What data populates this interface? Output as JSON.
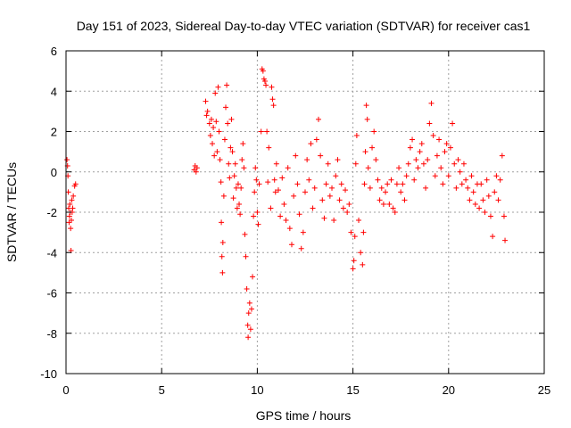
{
  "chart_data": {
    "type": "scatter",
    "title": "Day 151 of 2023, Sidereal Day-to-day VTEC variation (SDTVAR) for receiver cas1",
    "xlabel": "GPS time / hours",
    "ylabel": "SDTVAR / TECUs",
    "xlim": [
      0,
      25
    ],
    "ylim": [
      -10,
      6
    ],
    "xticks": [
      0,
      5,
      10,
      15,
      20,
      25
    ],
    "yticks": [
      -10,
      -8,
      -6,
      -4,
      -2,
      0,
      2,
      4,
      6
    ],
    "xtick_labels": [
      "0",
      "5",
      "10",
      "15",
      "20",
      "25"
    ],
    "ytick_labels": [
      "-10",
      "-8",
      "-6",
      "-4",
      "-2",
      "0",
      "2",
      "4",
      "6"
    ],
    "grid": true,
    "marker": "+",
    "color": "#ff0000",
    "series": [
      {
        "name": "cas1",
        "points": [
          [
            0.05,
            0.6
          ],
          [
            0.08,
            0.3
          ],
          [
            0.1,
            -0.2
          ],
          [
            0.12,
            -1.0
          ],
          [
            0.14,
            -1.8
          ],
          [
            0.16,
            -2.5
          ],
          [
            0.18,
            -2.2
          ],
          [
            0.2,
            -1.6
          ],
          [
            0.22,
            -2.0
          ],
          [
            0.24,
            -2.8
          ],
          [
            0.26,
            -3.9
          ],
          [
            0.28,
            -2.4
          ],
          [
            0.3,
            -1.4
          ],
          [
            0.32,
            -2.0
          ],
          [
            0.35,
            -1.8
          ],
          [
            0.38,
            -1.2
          ],
          [
            0.45,
            -0.7
          ],
          [
            0.5,
            -0.6
          ],
          [
            6.7,
            0.1
          ],
          [
            6.75,
            0.3
          ],
          [
            6.8,
            0.0
          ],
          [
            6.85,
            0.2
          ],
          [
            7.3,
            3.5
          ],
          [
            7.35,
            2.8
          ],
          [
            7.4,
            3.0
          ],
          [
            7.5,
            2.4
          ],
          [
            7.55,
            1.8
          ],
          [
            7.6,
            2.6
          ],
          [
            7.65,
            1.4
          ],
          [
            7.7,
            2.2
          ],
          [
            7.75,
            0.8
          ],
          [
            7.8,
            3.9
          ],
          [
            7.85,
            2.5
          ],
          [
            7.9,
            1.0
          ],
          [
            7.95,
            4.2
          ],
          [
            8.0,
            2.0
          ],
          [
            8.05,
            0.6
          ],
          [
            8.1,
            -0.5
          ],
          [
            8.12,
            -2.5
          ],
          [
            8.15,
            -4.2
          ],
          [
            8.18,
            -5.0
          ],
          [
            8.2,
            -3.5
          ],
          [
            8.25,
            -1.2
          ],
          [
            8.3,
            1.6
          ],
          [
            8.35,
            3.2
          ],
          [
            8.4,
            4.3
          ],
          [
            8.45,
            2.4
          ],
          [
            8.5,
            0.4
          ],
          [
            8.55,
            -0.3
          ],
          [
            8.6,
            1.2
          ],
          [
            8.65,
            2.6
          ],
          [
            8.7,
            1.0
          ],
          [
            8.75,
            -1.3
          ],
          [
            8.8,
            -0.2
          ],
          [
            8.85,
            0.4
          ],
          [
            8.9,
            -0.8
          ],
          [
            8.95,
            -1.8
          ],
          [
            9.0,
            -0.6
          ],
          [
            9.05,
            -1.6
          ],
          [
            9.1,
            -2.1
          ],
          [
            9.15,
            -0.8
          ],
          [
            9.2,
            0.6
          ],
          [
            9.25,
            1.4
          ],
          [
            9.3,
            0.2
          ],
          [
            9.35,
            -3.1
          ],
          [
            9.4,
            -4.2
          ],
          [
            9.45,
            -5.8
          ],
          [
            9.5,
            -7.6
          ],
          [
            9.52,
            -8.2
          ],
          [
            9.55,
            -7.0
          ],
          [
            9.6,
            -6.5
          ],
          [
            9.65,
            -7.8
          ],
          [
            9.7,
            -6.8
          ],
          [
            9.75,
            -5.2
          ],
          [
            9.8,
            -2.2
          ],
          [
            9.85,
            -1.0
          ],
          [
            9.9,
            0.2
          ],
          [
            9.95,
            -0.4
          ],
          [
            10.0,
            -2.0
          ],
          [
            10.05,
            -2.6
          ],
          [
            10.1,
            -0.6
          ],
          [
            10.2,
            2.0
          ],
          [
            10.25,
            5.1
          ],
          [
            10.3,
            5.0
          ],
          [
            10.35,
            4.6
          ],
          [
            10.4,
            4.5
          ],
          [
            10.45,
            4.3
          ],
          [
            10.5,
            2.0
          ],
          [
            10.55,
            -0.5
          ],
          [
            10.6,
            1.2
          ],
          [
            10.7,
            -1.8
          ],
          [
            10.75,
            4.2
          ],
          [
            10.8,
            3.6
          ],
          [
            10.85,
            3.3
          ],
          [
            10.9,
            -0.4
          ],
          [
            10.95,
            -1.0
          ],
          [
            11.0,
            0.4
          ],
          [
            11.1,
            -0.9
          ],
          [
            11.2,
            -2.2
          ],
          [
            11.3,
            -0.3
          ],
          [
            11.4,
            -1.6
          ],
          [
            11.5,
            -2.4
          ],
          [
            11.6,
            0.2
          ],
          [
            11.7,
            -2.8
          ],
          [
            11.8,
            -3.6
          ],
          [
            11.9,
            -1.2
          ],
          [
            12.0,
            0.8
          ],
          [
            12.1,
            -0.6
          ],
          [
            12.2,
            -2.1
          ],
          [
            12.3,
            -3.8
          ],
          [
            12.4,
            -3.0
          ],
          [
            12.5,
            -1.0
          ],
          [
            12.6,
            0.6
          ],
          [
            12.7,
            -0.4
          ],
          [
            12.8,
            1.4
          ],
          [
            12.9,
            -1.8
          ],
          [
            13.0,
            -0.8
          ],
          [
            13.1,
            1.6
          ],
          [
            13.2,
            2.6
          ],
          [
            13.3,
            0.8
          ],
          [
            13.4,
            -1.4
          ],
          [
            13.5,
            -2.3
          ],
          [
            13.6,
            -0.6
          ],
          [
            13.7,
            0.4
          ],
          [
            13.8,
            -1.2
          ],
          [
            13.9,
            -0.8
          ],
          [
            14.0,
            -2.4
          ],
          [
            14.1,
            -0.2
          ],
          [
            14.2,
            0.6
          ],
          [
            14.3,
            -1.4
          ],
          [
            14.4,
            -0.6
          ],
          [
            14.5,
            -1.8
          ],
          [
            14.6,
            -0.9
          ],
          [
            14.7,
            -2.0
          ],
          [
            14.8,
            -1.6
          ],
          [
            14.9,
            -3.0
          ],
          [
            15.0,
            -4.8
          ],
          [
            15.05,
            -4.4
          ],
          [
            15.1,
            -3.2
          ],
          [
            15.15,
            0.4
          ],
          [
            15.2,
            1.8
          ],
          [
            15.3,
            -2.4
          ],
          [
            15.4,
            -4.0
          ],
          [
            15.5,
            -4.6
          ],
          [
            15.55,
            -3.0
          ],
          [
            15.6,
            -0.6
          ],
          [
            15.65,
            1.0
          ],
          [
            15.7,
            3.3
          ],
          [
            15.75,
            2.6
          ],
          [
            15.8,
            0.2
          ],
          [
            15.9,
            -0.8
          ],
          [
            16.0,
            1.2
          ],
          [
            16.1,
            2.0
          ],
          [
            16.2,
            0.6
          ],
          [
            16.3,
            -0.4
          ],
          [
            16.4,
            -1.4
          ],
          [
            16.5,
            -0.8
          ],
          [
            16.6,
            -1.6
          ],
          [
            16.7,
            -1.0
          ],
          [
            16.8,
            -0.6
          ],
          [
            16.9,
            -1.6
          ],
          [
            17.0,
            -0.4
          ],
          [
            17.1,
            -1.8
          ],
          [
            17.2,
            -2.0
          ],
          [
            17.3,
            -0.6
          ],
          [
            17.4,
            0.2
          ],
          [
            17.5,
            -1.0
          ],
          [
            17.6,
            -0.6
          ],
          [
            17.7,
            -1.4
          ],
          [
            17.8,
            -0.2
          ],
          [
            17.9,
            0.4
          ],
          [
            18.0,
            1.2
          ],
          [
            18.1,
            1.6
          ],
          [
            18.2,
            -0.4
          ],
          [
            18.3,
            0.6
          ],
          [
            18.4,
            0.2
          ],
          [
            18.5,
            1.0
          ],
          [
            18.6,
            1.4
          ],
          [
            18.7,
            0.4
          ],
          [
            18.8,
            -0.8
          ],
          [
            18.9,
            0.6
          ],
          [
            19.0,
            2.4
          ],
          [
            19.1,
            3.4
          ],
          [
            19.2,
            1.8
          ],
          [
            19.3,
            -0.2
          ],
          [
            19.4,
            0.8
          ],
          [
            19.5,
            1.6
          ],
          [
            19.6,
            0.2
          ],
          [
            19.7,
            -0.6
          ],
          [
            19.8,
            1.0
          ],
          [
            19.9,
            1.4
          ],
          [
            20.0,
            -0.2
          ],
          [
            20.1,
            1.2
          ],
          [
            20.2,
            2.4
          ],
          [
            20.3,
            0.4
          ],
          [
            20.4,
            -0.8
          ],
          [
            20.5,
            0.6
          ],
          [
            20.6,
            0.0
          ],
          [
            20.7,
            -0.6
          ],
          [
            20.8,
            0.4
          ],
          [
            20.9,
            -0.4
          ],
          [
            21.0,
            -0.8
          ],
          [
            21.1,
            -1.4
          ],
          [
            21.2,
            -0.2
          ],
          [
            21.3,
            -1.0
          ],
          [
            21.4,
            -1.6
          ],
          [
            21.5,
            -0.6
          ],
          [
            21.6,
            -1.8
          ],
          [
            21.7,
            -0.6
          ],
          [
            21.8,
            -1.4
          ],
          [
            21.9,
            -2.0
          ],
          [
            22.0,
            -0.4
          ],
          [
            22.1,
            -1.2
          ],
          [
            22.2,
            -2.2
          ],
          [
            22.3,
            -3.2
          ],
          [
            22.4,
            -1.0
          ],
          [
            22.5,
            -0.2
          ],
          [
            22.6,
            -1.4
          ],
          [
            22.7,
            -0.4
          ],
          [
            22.8,
            0.8
          ],
          [
            22.9,
            -2.2
          ],
          [
            22.95,
            -3.4
          ]
        ]
      }
    ]
  }
}
